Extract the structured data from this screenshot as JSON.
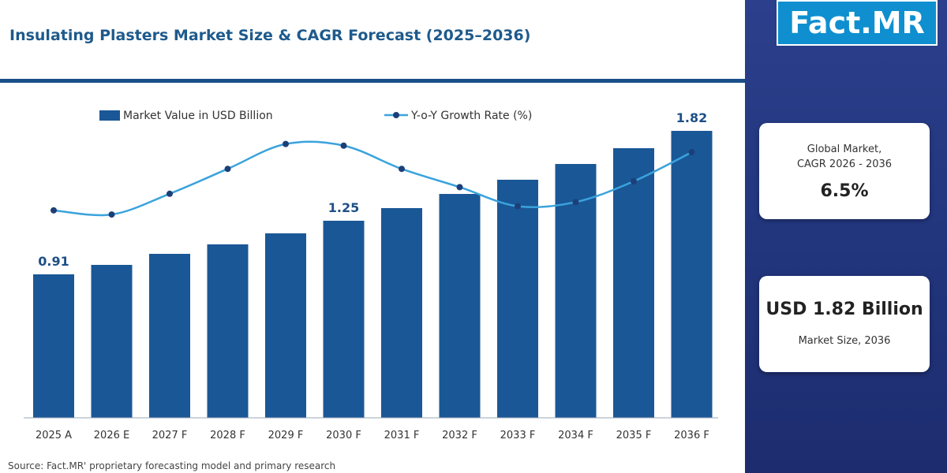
{
  "colors": {
    "title": "#1e5a8c",
    "bar": "#1a5796",
    "line": "#3aa3dc",
    "marker": "#1d3f78",
    "sidebar": "#22377f",
    "logo_bg": "#0f8fcf"
  },
  "logo": {
    "text": "Fact.MR"
  },
  "chart_data": {
    "type": "bar",
    "title": "Insulating Plasters Market Size & CAGR Forecast (2025–2036)",
    "categories": [
      "2025 A",
      "2026 E",
      "2027 F",
      "2028 F",
      "2029 F",
      "2030 F",
      "2031 F",
      "2032 F",
      "2033 F",
      "2034 F",
      "2035 F",
      "2036 F"
    ],
    "series": [
      {
        "name": "Market Value in USD Billion",
        "type": "bar",
        "values": [
          0.91,
          0.97,
          1.04,
          1.1,
          1.17,
          1.25,
          1.33,
          1.42,
          1.51,
          1.61,
          1.71,
          1.82
        ]
      },
      {
        "name": "Y-o-Y Growth Rate (%)",
        "type": "line",
        "values": [
          6.5,
          6.45,
          6.7,
          7.0,
          7.3,
          7.28,
          7.0,
          6.78,
          6.55,
          6.6,
          6.85,
          7.2
        ]
      }
    ],
    "data_labels": [
      {
        "index": 0,
        "text": "0.91"
      },
      {
        "index": 5,
        "text": "1.25"
      },
      {
        "index": 11,
        "text": "1.82"
      }
    ],
    "ylim": [
      0,
      2.0
    ],
    "line_ylim": [
      4.0,
      7.8
    ],
    "legend_position": "top",
    "grid": false
  },
  "cards": {
    "cagr_caption": "Global Market,\nCAGR 2026 - 2036",
    "cagr_value": "6.5%",
    "size_value": "USD 1.82 Billion",
    "size_caption": "Market Size, 2036"
  },
  "source": "Source: Fact.MR' proprietary forecasting model and primary research"
}
